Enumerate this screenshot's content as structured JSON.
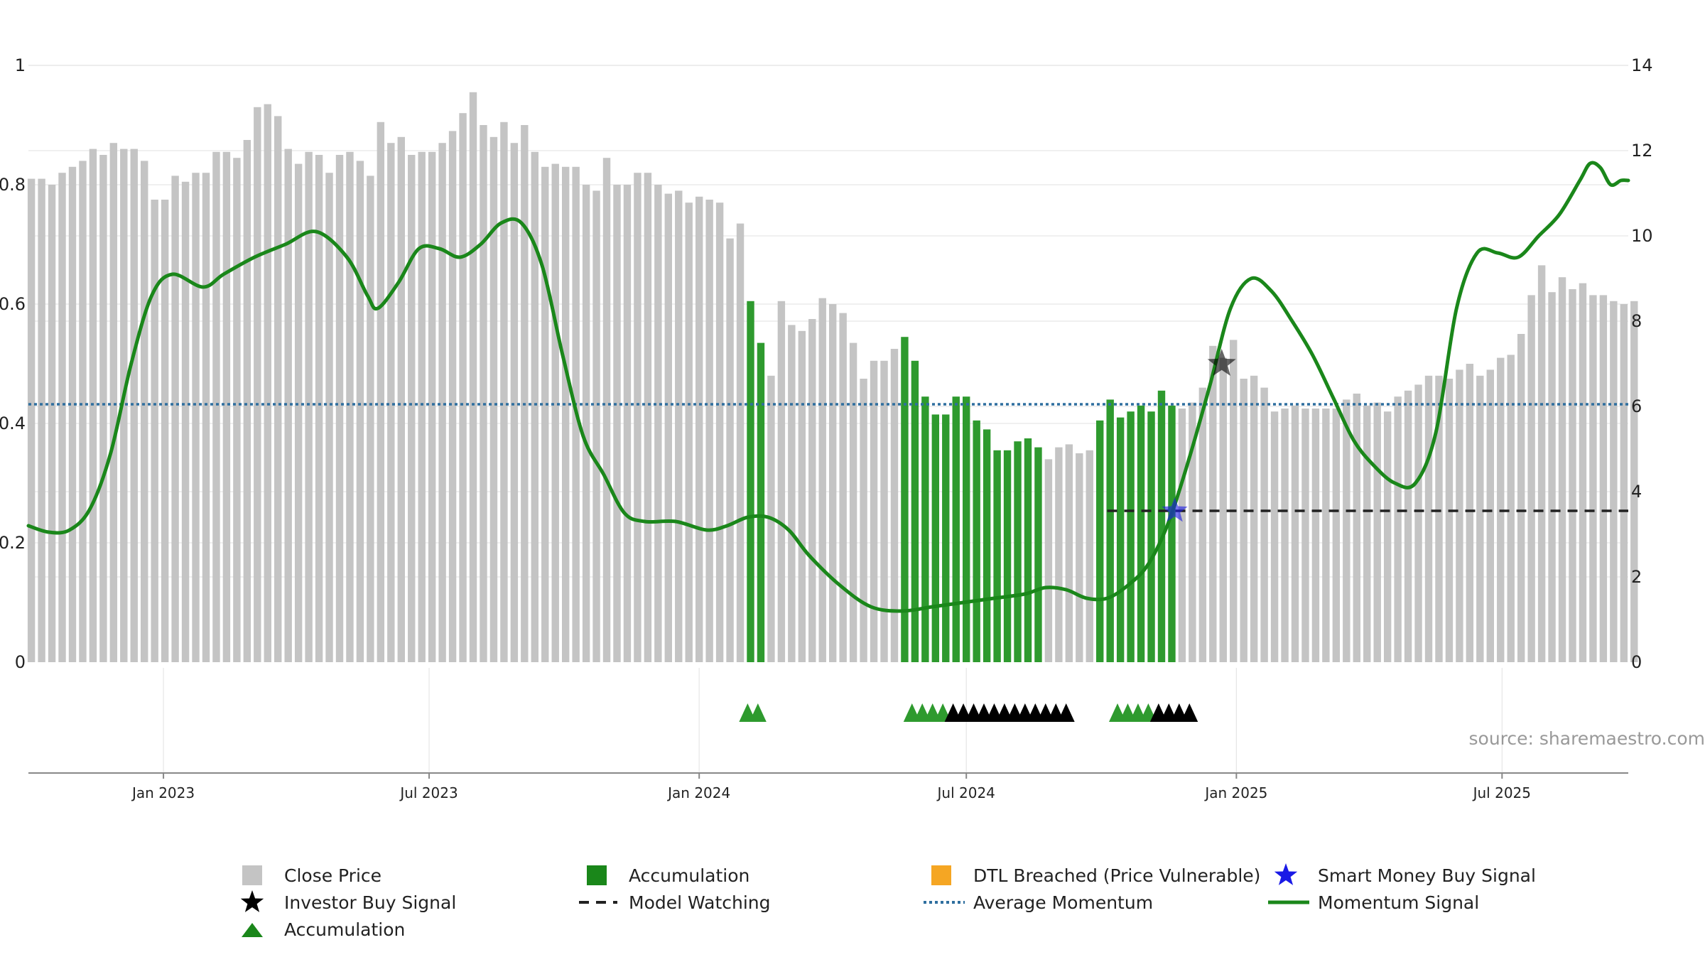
{
  "chart_data": {
    "type": "bar",
    "title": "",
    "source": "source: sharemaestro.com",
    "left_axis": {
      "ylim": [
        0,
        1
      ],
      "ticks": [
        0,
        0.2,
        0.4,
        0.6,
        0.8,
        1
      ],
      "tick_labels": [
        "0",
        "0.2",
        "0.4",
        "0.6",
        "0.8",
        "1"
      ]
    },
    "right_axis": {
      "ylim": [
        0,
        14
      ],
      "ticks": [
        0,
        2,
        4,
        6,
        8,
        10,
        12,
        14
      ],
      "tick_labels": [
        "0",
        "2",
        "4",
        "6",
        "8",
        "10",
        "12",
        "14"
      ]
    },
    "x_axis": {
      "range": [
        "2022-10-01",
        "2025-09-25"
      ],
      "ticks": [
        "2023-01-01",
        "2023-07-01",
        "2024-01-01",
        "2024-07-01",
        "2025-01-01",
        "2025-07-01"
      ],
      "tick_labels": [
        "Jan 2023",
        "Jul 2023",
        "Jan 2024",
        "Jul 2024",
        "Jan 2025",
        "Jul 2025"
      ]
    },
    "grid": true,
    "colors": {
      "close_price": "#c4c4c4",
      "accumulation_bar": "#2e9a2e",
      "momentum_line": "#1a871a",
      "avg_momentum": "#2f6f9f",
      "model_watching": "#222222",
      "investor_star": "#000000",
      "smart_money_star": "#1a1ae6",
      "dtl": "#f5a623",
      "grid": "#e6e6e6"
    },
    "close_price": {
      "start": "2022-10-03",
      "interval_days": 7,
      "values": [
        0.81,
        0.81,
        0.8,
        0.82,
        0.83,
        0.84,
        0.86,
        0.85,
        0.87,
        0.86,
        0.86,
        0.84,
        0.775,
        0.775,
        0.815,
        0.805,
        0.82,
        0.82,
        0.855,
        0.855,
        0.845,
        0.875,
        0.93,
        0.935,
        0.915,
        0.86,
        0.835,
        0.855,
        0.85,
        0.82,
        0.85,
        0.855,
        0.84,
        0.815,
        0.905,
        0.87,
        0.88,
        0.85,
        0.855,
        0.855,
        0.87,
        0.89,
        0.92,
        0.955,
        0.9,
        0.88,
        0.905,
        0.87,
        0.9,
        0.855,
        0.83,
        0.835,
        0.83,
        0.83,
        0.8,
        0.79,
        0.845,
        0.8,
        0.8,
        0.82,
        0.82,
        0.8,
        0.785,
        0.79,
        0.77,
        0.78,
        0.775,
        0.77,
        0.71,
        0.735,
        0.605,
        0.535,
        0.48,
        0.605,
        0.565,
        0.555,
        0.575,
        0.61,
        0.6,
        0.585,
        0.535,
        0.475,
        0.505,
        0.505,
        0.525,
        0.545,
        0.505,
        0.445,
        0.415,
        0.415,
        0.445,
        0.445,
        0.405,
        0.39,
        0.355,
        0.355,
        0.37,
        0.375,
        0.36,
        0.34,
        0.36,
        0.365,
        0.35,
        0.355,
        0.405,
        0.44,
        0.41,
        0.42,
        0.43,
        0.42,
        0.455,
        0.43,
        0.425,
        0.435,
        0.46,
        0.53,
        0.51,
        0.54,
        0.475,
        0.48,
        0.46,
        0.42,
        0.425,
        0.43,
        0.425,
        0.425,
        0.425,
        0.425,
        0.44,
        0.45,
        0.43,
        0.435,
        0.42,
        0.445,
        0.455,
        0.465,
        0.48,
        0.48,
        0.475,
        0.49,
        0.5,
        0.48,
        0.49,
        0.51,
        0.515,
        0.55,
        0.615,
        0.665,
        0.62,
        0.645,
        0.625,
        0.635,
        0.615,
        0.615,
        0.605,
        0.6,
        0.605
      ]
    },
    "accumulation_bar_indices": [
      70,
      71,
      85,
      86,
      87,
      88,
      89,
      90,
      91,
      92,
      93,
      94,
      95,
      96,
      97,
      98,
      104,
      105,
      106,
      107,
      108,
      109,
      110,
      111
    ],
    "momentum_signal": [
      [
        "2022-10-01",
        3.2
      ],
      [
        "2022-10-15",
        3.05
      ],
      [
        "2022-10-29",
        3.1
      ],
      [
        "2022-11-12",
        3.6
      ],
      [
        "2022-11-26",
        4.9
      ],
      [
        "2022-12-10",
        7.0
      ],
      [
        "2022-12-24",
        8.6
      ],
      [
        "2023-01-07",
        9.1
      ],
      [
        "2023-01-28",
        8.8
      ],
      [
        "2023-02-11",
        9.1
      ],
      [
        "2023-03-04",
        9.5
      ],
      [
        "2023-03-25",
        9.8
      ],
      [
        "2023-04-15",
        10.1
      ],
      [
        "2023-05-06",
        9.5
      ],
      [
        "2023-05-20",
        8.6
      ],
      [
        "2023-05-27",
        8.3
      ],
      [
        "2023-06-10",
        8.9
      ],
      [
        "2023-06-24",
        9.7
      ],
      [
        "2023-07-08",
        9.7
      ],
      [
        "2023-07-22",
        9.5
      ],
      [
        "2023-08-05",
        9.8
      ],
      [
        "2023-08-19",
        10.3
      ],
      [
        "2023-09-02",
        10.3
      ],
      [
        "2023-09-16",
        9.3
      ],
      [
        "2023-09-30",
        7.2
      ],
      [
        "2023-10-14",
        5.3
      ],
      [
        "2023-10-28",
        4.4
      ],
      [
        "2023-11-11",
        3.5
      ],
      [
        "2023-11-25",
        3.3
      ],
      [
        "2023-12-16",
        3.3
      ],
      [
        "2024-01-06",
        3.1
      ],
      [
        "2024-01-20",
        3.2
      ],
      [
        "2024-02-03",
        3.4
      ],
      [
        "2024-02-17",
        3.4
      ],
      [
        "2024-03-02",
        3.1
      ],
      [
        "2024-03-16",
        2.5
      ],
      [
        "2024-04-06",
        1.8
      ],
      [
        "2024-04-27",
        1.3
      ],
      [
        "2024-05-18",
        1.2
      ],
      [
        "2024-06-08",
        1.3
      ],
      [
        "2024-06-29",
        1.4
      ],
      [
        "2024-07-20",
        1.5
      ],
      [
        "2024-08-10",
        1.6
      ],
      [
        "2024-08-24",
        1.75
      ],
      [
        "2024-09-07",
        1.7
      ],
      [
        "2024-09-21",
        1.5
      ],
      [
        "2024-10-05",
        1.5
      ],
      [
        "2024-10-19",
        1.8
      ],
      [
        "2024-11-02",
        2.3
      ],
      [
        "2024-11-16",
        3.3
      ],
      [
        "2024-11-30",
        4.8
      ],
      [
        "2024-12-14",
        6.5
      ],
      [
        "2024-12-28",
        8.3
      ],
      [
        "2025-01-11",
        9.0
      ],
      [
        "2025-01-25",
        8.7
      ],
      [
        "2025-02-08",
        8.0
      ],
      [
        "2025-02-22",
        7.2
      ],
      [
        "2025-03-08",
        6.2
      ],
      [
        "2025-03-22",
        5.2
      ],
      [
        "2025-04-05",
        4.6
      ],
      [
        "2025-04-19",
        4.2
      ],
      [
        "2025-05-03",
        4.2
      ],
      [
        "2025-05-17",
        5.4
      ],
      [
        "2025-05-31",
        8.3
      ],
      [
        "2025-06-14",
        9.6
      ],
      [
        "2025-06-28",
        9.6
      ],
      [
        "2025-07-12",
        9.5
      ],
      [
        "2025-07-26",
        10.0
      ],
      [
        "2025-08-09",
        10.5
      ],
      [
        "2025-08-23",
        11.3
      ],
      [
        "2025-08-30",
        11.7
      ],
      [
        "2025-09-06",
        11.6
      ],
      [
        "2025-09-13",
        11.2
      ],
      [
        "2025-09-20",
        11.3
      ],
      [
        "2025-09-25",
        11.3
      ]
    ],
    "average_momentum": 6.05,
    "model_watching": {
      "start": "2024-10-05",
      "end": "2025-09-25",
      "value": 3.55
    },
    "investor_buy_signal": {
      "date": "2024-12-22",
      "value": 7.0
    },
    "smart_money_buy_signal": {
      "date": "2024-11-20",
      "value": 3.55
    },
    "accumulation_markers": {
      "green": [
        "2024-02-03",
        "2024-02-10",
        "2024-05-25",
        "2024-06-01",
        "2024-06-08",
        "2024-06-15",
        "2024-10-12",
        "2024-10-19",
        "2024-10-26",
        "2024-11-02"
      ],
      "black": [
        "2024-06-22",
        "2024-06-29",
        "2024-07-06",
        "2024-07-13",
        "2024-07-20",
        "2024-07-27",
        "2024-08-03",
        "2024-08-10",
        "2024-08-17",
        "2024-08-24",
        "2024-08-31",
        "2024-09-07",
        "2024-11-09",
        "2024-11-16",
        "2024-11-23",
        "2024-11-30"
      ]
    },
    "legend_position": "bottom",
    "legend": {
      "close_price": "Close Price",
      "accumulation_bar": "Accumulation",
      "dtl_breached": "DTL Breached (Price Vulnerable)",
      "smart_money": "Smart Money Buy Signal",
      "investor_buy": "Investor Buy Signal",
      "model_watching": "Model Watching",
      "average_momentum": "Average Momentum",
      "momentum_signal": "Momentum Signal",
      "accumulation_marker": "Accumulation"
    }
  }
}
